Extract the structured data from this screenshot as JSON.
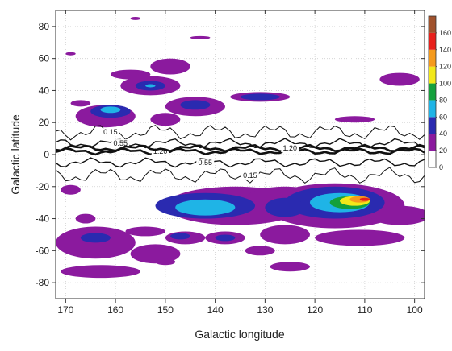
{
  "chart_data": {
    "type": "heatmap",
    "title": "",
    "xlabel": "Galactic longitude",
    "ylabel": "Galactic latitude",
    "xlim": [
      172,
      98
    ],
    "ylim": [
      -90,
      90
    ],
    "x_ticks": [
      170,
      160,
      150,
      140,
      130,
      120,
      110,
      100
    ],
    "y_ticks": [
      80,
      60,
      40,
      20,
      0,
      -20,
      -40,
      -60,
      -80
    ],
    "grid": true,
    "colorbar": {
      "placement": "right",
      "tick_values": [
        0,
        20,
        40,
        60,
        80,
        100,
        120,
        140,
        160
      ],
      "levels": [
        {
          "min": 0,
          "max": 20,
          "color": "#ffffff"
        },
        {
          "min": 20,
          "max": 40,
          "color": "#8b1a9e"
        },
        {
          "min": 40,
          "max": 60,
          "color": "#2a2ab0"
        },
        {
          "min": 60,
          "max": 80,
          "color": "#1fb4e6"
        },
        {
          "min": 80,
          "max": 100,
          "color": "#14a03c"
        },
        {
          "min": 100,
          "max": 120,
          "color": "#f2e81a"
        },
        {
          "min": 120,
          "max": 140,
          "color": "#f59a1c"
        },
        {
          "min": 140,
          "max": 160,
          "color": "#e8201c"
        },
        {
          "min": 160,
          "max": 180,
          "color": "#a0522d"
        }
      ]
    },
    "regions": [
      {
        "level": 20,
        "l": 136,
        "b": -32,
        "rl": 14,
        "rb": 12
      },
      {
        "level": 20,
        "l": 116,
        "b": -32,
        "rl": 14,
        "rb": 14
      },
      {
        "level": 20,
        "l": 126,
        "b": -28,
        "rl": 8,
        "rb": 8
      },
      {
        "level": 20,
        "l": 103,
        "b": -38,
        "rl": 6,
        "rb": 6
      },
      {
        "level": 20,
        "l": 164,
        "b": -55,
        "rl": 8,
        "rb": 10
      },
      {
        "level": 20,
        "l": 154,
        "b": -48,
        "rl": 4,
        "rb": 3
      },
      {
        "level": 20,
        "l": 163,
        "b": -73,
        "rl": 8,
        "rb": 4
      },
      {
        "level": 20,
        "l": 152,
        "b": -62,
        "rl": 5,
        "rb": 6
      },
      {
        "level": 20,
        "l": 146,
        "b": -52,
        "rl": 4,
        "rb": 4
      },
      {
        "level": 20,
        "l": 138,
        "b": -52,
        "rl": 4,
        "rb": 4
      },
      {
        "level": 20,
        "l": 131,
        "b": -60,
        "rl": 3,
        "rb": 3
      },
      {
        "level": 20,
        "l": 126,
        "b": -50,
        "rl": 5,
        "rb": 6
      },
      {
        "level": 20,
        "l": 111,
        "b": -52,
        "rl": 9,
        "rb": 5
      },
      {
        "level": 20,
        "l": 125,
        "b": -70,
        "rl": 4,
        "rb": 3
      },
      {
        "level": 20,
        "l": 150,
        "b": -67,
        "rl": 2,
        "rb": 2
      },
      {
        "level": 20,
        "l": 166,
        "b": -40,
        "rl": 2,
        "rb": 3
      },
      {
        "level": 20,
        "l": 169,
        "b": -22,
        "rl": 2,
        "rb": 3
      },
      {
        "level": 20,
        "l": 162,
        "b": 24,
        "rl": 6,
        "rb": 7
      },
      {
        "level": 20,
        "l": 153,
        "b": 43,
        "rl": 6,
        "rb": 6
      },
      {
        "level": 20,
        "l": 157,
        "b": 50,
        "rl": 4,
        "rb": 3
      },
      {
        "level": 20,
        "l": 144,
        "b": 30,
        "rl": 6,
        "rb": 6
      },
      {
        "level": 20,
        "l": 150,
        "b": 22,
        "rl": 3,
        "rb": 4
      },
      {
        "level": 20,
        "l": 149,
        "b": 55,
        "rl": 4,
        "rb": 5
      },
      {
        "level": 20,
        "l": 131,
        "b": 36,
        "rl": 6,
        "rb": 3
      },
      {
        "level": 20,
        "l": 103,
        "b": 47,
        "rl": 4,
        "rb": 4
      },
      {
        "level": 20,
        "l": 112,
        "b": 22,
        "rl": 4,
        "rb": 2
      },
      {
        "level": 20,
        "l": 167,
        "b": 32,
        "rl": 2,
        "rb": 2
      },
      {
        "level": 20,
        "l": 143,
        "b": 73,
        "rl": 2,
        "rb": 1
      },
      {
        "level": 20,
        "l": 169,
        "b": 63,
        "rl": 1,
        "rb": 1
      },
      {
        "level": 20,
        "l": 156,
        "b": 85,
        "rl": 1,
        "rb": 1
      },
      {
        "level": 40,
        "l": 142,
        "b": -32,
        "rl": 10,
        "rb": 8
      },
      {
        "level": 40,
        "l": 116,
        "b": -30,
        "rl": 10,
        "rb": 10
      },
      {
        "level": 40,
        "l": 126,
        "b": -33,
        "rl": 4,
        "rb": 6
      },
      {
        "level": 40,
        "l": 164,
        "b": -52,
        "rl": 3,
        "rb": 3
      },
      {
        "level": 40,
        "l": 147,
        "b": -51,
        "rl": 2,
        "rb": 2
      },
      {
        "level": 40,
        "l": 138,
        "b": -52,
        "rl": 2,
        "rb": 2
      },
      {
        "level": 40,
        "l": 161,
        "b": 27,
        "rl": 4,
        "rb": 4
      },
      {
        "level": 40,
        "l": 153,
        "b": 43,
        "rl": 3,
        "rb": 3
      },
      {
        "level": 40,
        "l": 144,
        "b": 31,
        "rl": 3,
        "rb": 3
      },
      {
        "level": 40,
        "l": 131,
        "b": 36,
        "rl": 4,
        "rb": 2
      },
      {
        "level": 60,
        "l": 142,
        "b": -33,
        "rl": 6,
        "rb": 5
      },
      {
        "level": 60,
        "l": 115,
        "b": -30,
        "rl": 6,
        "rb": 6
      },
      {
        "level": 60,
        "l": 161,
        "b": 28,
        "rl": 2,
        "rb": 2
      },
      {
        "level": 60,
        "l": 153,
        "b": 43,
        "rl": 1,
        "rb": 1
      },
      {
        "level": 80,
        "l": 113,
        "b": -30,
        "rl": 4,
        "rb": 4
      },
      {
        "level": 100,
        "l": 112,
        "b": -29,
        "rl": 3,
        "rb": 3
      },
      {
        "level": 120,
        "l": 111,
        "b": -28,
        "rl": 2,
        "rb": 2
      },
      {
        "level": 140,
        "l": 110,
        "b": -28,
        "rl": 1,
        "rb": 1
      }
    ],
    "contours": [
      {
        "label": "0.15",
        "amp": 5,
        "weight": 1,
        "base": 14,
        "label_l": 161
      },
      {
        "label": "0.55",
        "amp": 3,
        "weight": 1.4,
        "base": 7,
        "label_l": 159
      },
      {
        "label": "1.20",
        "amp": 2,
        "weight": 2.6,
        "base": 2,
        "label_l": 151
      },
      {
        "label": "1.20",
        "amp": 2,
        "weight": 2.6,
        "base": 4,
        "label_l": 125
      },
      {
        "label": "0.55",
        "amp": 3,
        "weight": 1.4,
        "base": -5,
        "label_l": 142
      },
      {
        "label": "0.15",
        "amp": 5,
        "weight": 1,
        "base": -13,
        "label_l": 133
      }
    ]
  }
}
